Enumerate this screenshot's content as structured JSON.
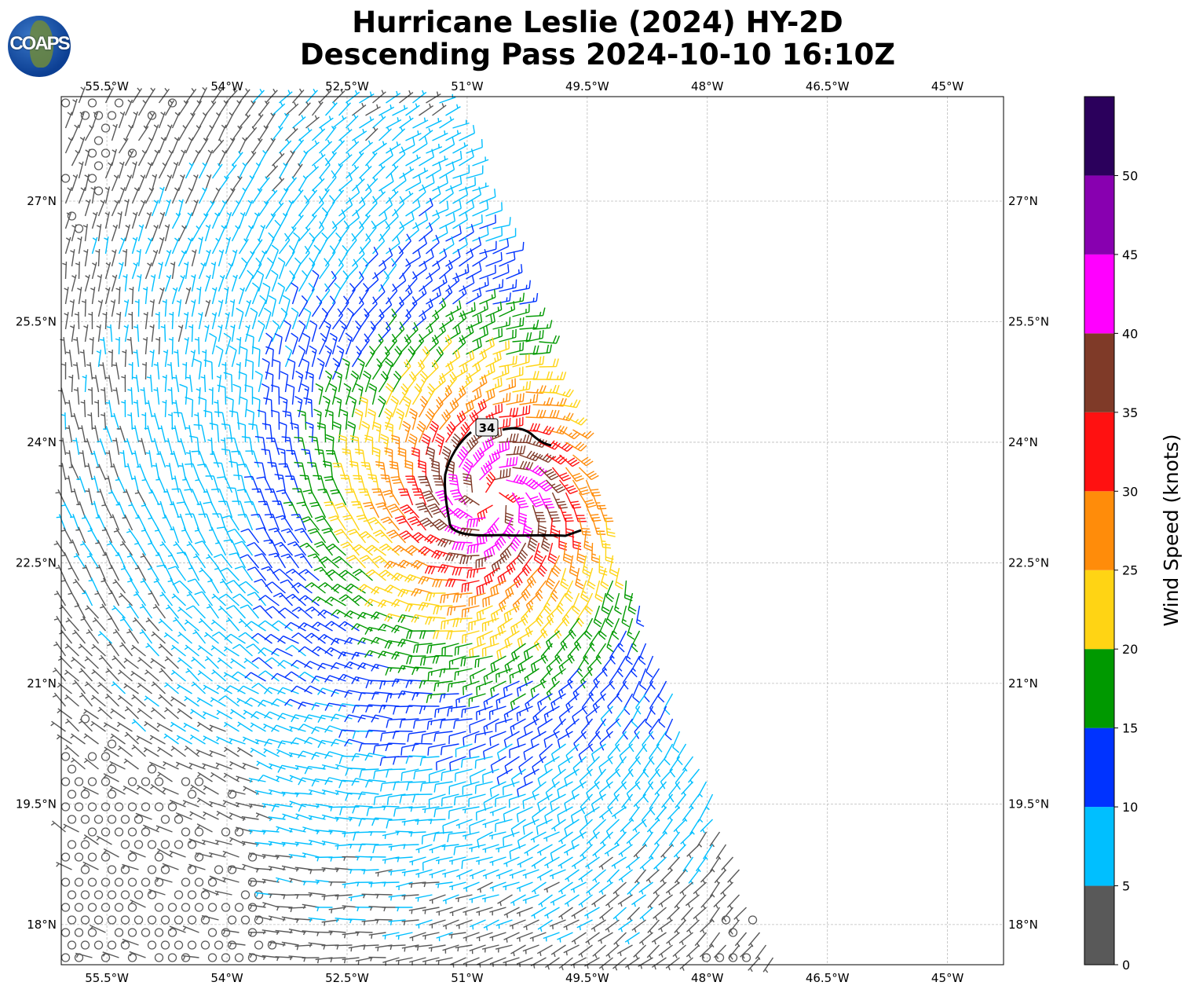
{
  "title": {
    "line1": "Hurricane Leslie (2024) HY-2D",
    "line2": "Descending Pass 2024-10-10 16:10Z"
  },
  "logo_text": "COAPS",
  "map": {
    "lon_ticks": [
      {
        "value": -55.5,
        "label": "55.5°W"
      },
      {
        "value": -54,
        "label": "54°W"
      },
      {
        "value": -52.5,
        "label": "52.5°W"
      },
      {
        "value": -51,
        "label": "51°W"
      },
      {
        "value": -49.5,
        "label": "49.5°W"
      },
      {
        "value": -48,
        "label": "48°W"
      },
      {
        "value": -46.5,
        "label": "46.5°W"
      },
      {
        "value": -45,
        "label": "45°W"
      }
    ],
    "lat_ticks": [
      {
        "value": 27,
        "label": "27°N"
      },
      {
        "value": 25.5,
        "label": "25.5°N"
      },
      {
        "value": 24,
        "label": "24°N"
      },
      {
        "value": 22.5,
        "label": "22.5°N"
      },
      {
        "value": 21,
        "label": "21°N"
      },
      {
        "value": 19.5,
        "label": "19.5°N"
      },
      {
        "value": 18,
        "label": "18°N"
      }
    ],
    "lon_range": [
      -56.07,
      -44.3
    ],
    "lat_range": [
      17.5,
      28.3
    ],
    "storm_center": {
      "lon": -50.7,
      "lat": 23.3
    },
    "contour_label": "34"
  },
  "colorbar": {
    "label": "Wind Speed (knots)",
    "range": [
      0,
      55
    ],
    "ticks": [
      "0",
      "5",
      "10",
      "15",
      "20",
      "25",
      "30",
      "35",
      "40",
      "45",
      "50"
    ],
    "colors": [
      "#595959",
      "#00bfff",
      "#0033ff",
      "#009900",
      "#ffd414",
      "#ff8c0a",
      "#ff1111",
      "#7f3a28",
      "#ff00ff",
      "#8800b0",
      "#2b005c"
    ]
  }
}
